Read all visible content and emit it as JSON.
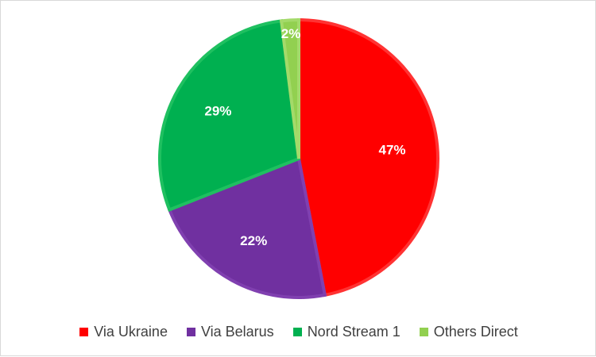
{
  "chart_data": {
    "type": "pie",
    "title": "",
    "categories": [
      "Via Ukraine",
      "Via Belarus",
      "Nord Stream 1",
      "Others Direct"
    ],
    "values": [
      47,
      22,
      29,
      2
    ],
    "labels": [
      "47%",
      "22%",
      "29%",
      "2%"
    ],
    "colors": [
      "#ff0000",
      "#7030a0",
      "#00b050",
      "#92d050"
    ],
    "border_colors": [
      "#ff3333",
      "#8040b0",
      "#1fc060",
      "#a4da6a"
    ],
    "legend": "bottom",
    "start_angle": "top, clockwise"
  }
}
